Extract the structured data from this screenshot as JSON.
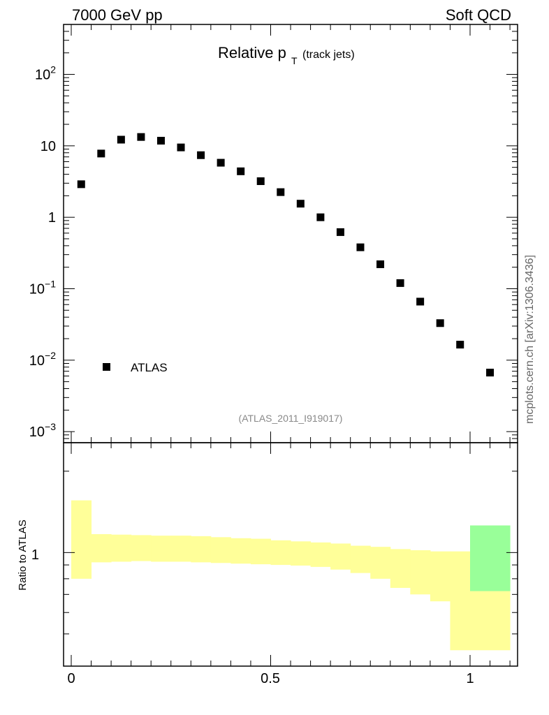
{
  "header": {
    "left": "7000 GeV pp",
    "right": "Soft QCD"
  },
  "plot_title": {
    "main": "Relative p",
    "sub": "T",
    "extra": "(track jets)"
  },
  "reference": "(ATLAS_2011_I919017)",
  "side_label": "mcplots.cern.ch [arXiv:1306.3436]",
  "chart_data": [
    {
      "type": "scatter",
      "title": "Relative pT (track jets)",
      "xlabel": "",
      "ylabel": "",
      "xlim": [
        -0.02,
        1.12
      ],
      "ylim": [
        0.0007,
        500
      ],
      "yscale": "log",
      "legend": "bottom-left",
      "tick_labels_y": [
        "10^-3",
        "10^-2",
        "10^-1",
        "1",
        "10",
        "10^2"
      ],
      "series": [
        {
          "name": "ATLAS",
          "color": "#000000",
          "marker": "square",
          "x": [
            0.025,
            0.075,
            0.125,
            0.175,
            0.225,
            0.275,
            0.325,
            0.375,
            0.425,
            0.475,
            0.525,
            0.575,
            0.625,
            0.675,
            0.725,
            0.775,
            0.825,
            0.875,
            0.925,
            0.975,
            1.05
          ],
          "y": [
            2.9,
            7.8,
            12.2,
            13.3,
            11.8,
            9.5,
            7.4,
            5.8,
            4.4,
            3.2,
            2.25,
            1.55,
            1.0,
            0.62,
            0.38,
            0.22,
            0.12,
            0.066,
            0.033,
            0.0165,
            0.0067
          ]
        }
      ]
    },
    {
      "type": "area",
      "title": "",
      "xlabel": "",
      "ylabel": "Ratio to ATLAS",
      "xlim": [
        -0.02,
        1.12
      ],
      "ylim": [
        0.38,
        2.55
      ],
      "yscale": "log",
      "tick_labels_x": [
        "0",
        "0.5",
        "1"
      ],
      "tick_labels_y": [
        "1"
      ],
      "bins": [
        0.0,
        0.05,
        0.1,
        0.15,
        0.2,
        0.25,
        0.3,
        0.35,
        0.4,
        0.45,
        0.5,
        0.55,
        0.6,
        0.65,
        0.7,
        0.75,
        0.8,
        0.85,
        0.9,
        0.95,
        1.0,
        1.1
      ],
      "bands": [
        {
          "name": "uncertainty",
          "color": "#ffff99",
          "low": [
            0.8,
            0.92,
            0.925,
            0.93,
            0.925,
            0.925,
            0.92,
            0.915,
            0.91,
            0.905,
            0.9,
            0.895,
            0.885,
            0.865,
            0.84,
            0.8,
            0.74,
            0.7,
            0.66,
            0.435,
            0.435
          ],
          "high": [
            1.56,
            1.17,
            1.165,
            1.16,
            1.155,
            1.155,
            1.15,
            1.14,
            1.13,
            1.125,
            1.11,
            1.1,
            1.09,
            1.08,
            1.06,
            1.05,
            1.03,
            1.02,
            1.01,
            1.01,
            1.04
          ]
        },
        {
          "name": "statistical",
          "color": "#99ff99",
          "low": [
            null,
            null,
            null,
            null,
            null,
            null,
            null,
            null,
            null,
            null,
            null,
            null,
            null,
            null,
            null,
            null,
            null,
            null,
            null,
            null,
            0.72
          ],
          "high": [
            null,
            null,
            null,
            null,
            null,
            null,
            null,
            null,
            null,
            null,
            null,
            null,
            null,
            null,
            null,
            null,
            null,
            null,
            null,
            null,
            1.26
          ]
        }
      ]
    }
  ]
}
